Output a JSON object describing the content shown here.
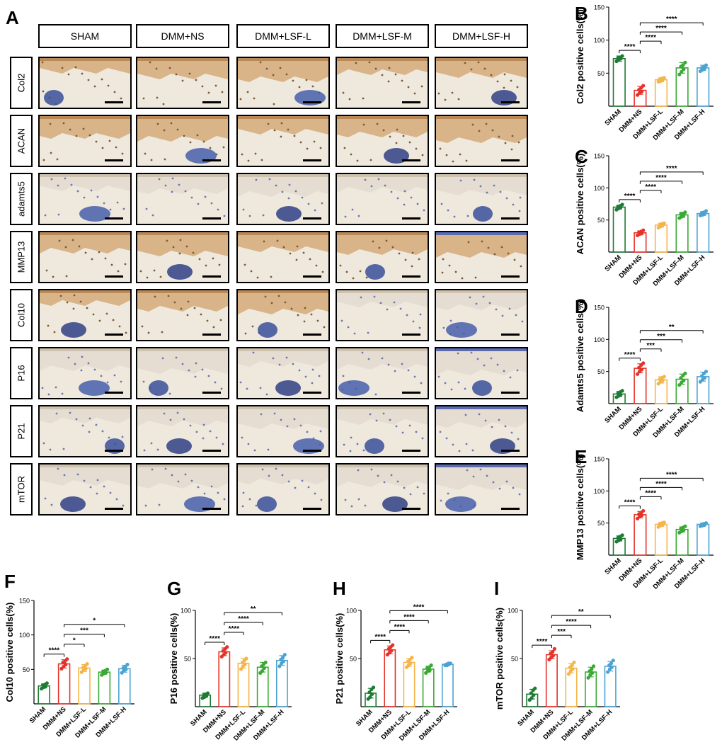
{
  "panel_letters": [
    "A",
    "B",
    "C",
    "D",
    "E",
    "F",
    "G",
    "H",
    "I"
  ],
  "histology": {
    "columns": [
      "SHAM",
      "DMM+NS",
      "DMM+LSF-L",
      "DMM+LSF-M",
      "DMM+LSF-H"
    ],
    "rows": [
      "Col2",
      "ACAN",
      "adamts5",
      "MMP13",
      "Col10",
      "P16",
      "P21",
      "mTOR"
    ]
  },
  "chart_data": [
    {
      "panel": "B",
      "type": "bar",
      "title": "",
      "ylabel": "Col2 positive cells(%)",
      "categories": [
        "SHAM",
        "DMM+NS",
        "DMM+LSF-L",
        "DMM+LSF-M",
        "DMM+LSF-H"
      ],
      "values": [
        72,
        24,
        40,
        58,
        58
      ],
      "errors": [
        4,
        6,
        3,
        8,
        4
      ],
      "points": [
        [
          68,
          70,
          72,
          73,
          74,
          76
        ],
        [
          17,
          20,
          22,
          25,
          28,
          31
        ],
        [
          37,
          38,
          40,
          41,
          42,
          43
        ],
        [
          48,
          52,
          56,
          60,
          62,
          66
        ],
        [
          53,
          55,
          57,
          58,
          60,
          62
        ]
      ],
      "ylim": [
        0,
        150
      ],
      "yticks": [
        50,
        100,
        150
      ],
      "colors": [
        "#1e7b34",
        "#e5332a",
        "#f5b54a",
        "#3aa935",
        "#4ba3d3"
      ],
      "comparisons": [
        {
          "a": 0,
          "b": 1,
          "label": "****"
        },
        {
          "a": 1,
          "b": 2,
          "label": "****"
        },
        {
          "a": 1,
          "b": 3,
          "label": "****"
        },
        {
          "a": 1,
          "b": 4,
          "label": "****"
        }
      ]
    },
    {
      "panel": "C",
      "type": "bar",
      "title": "",
      "ylabel": "ACAN positive cells(%)",
      "categories": [
        "SHAM",
        "DMM+NS",
        "DMM+LSF-L",
        "DMM+LSF-M",
        "DMM+LSF-H"
      ],
      "values": [
        70,
        30,
        42,
        58,
        60
      ],
      "errors": [
        3,
        3,
        3,
        4,
        3
      ],
      "points": [
        [
          66,
          68,
          70,
          71,
          72,
          74
        ],
        [
          26,
          28,
          29,
          31,
          32,
          34
        ],
        [
          38,
          40,
          42,
          43,
          44,
          45
        ],
        [
          53,
          55,
          57,
          59,
          60,
          62
        ],
        [
          57,
          58,
          60,
          61,
          62,
          64
        ]
      ],
      "ylim": [
        0,
        150
      ],
      "yticks": [
        50,
        100,
        150
      ],
      "colors": [
        "#1e7b34",
        "#e5332a",
        "#f5b54a",
        "#3aa935",
        "#4ba3d3"
      ],
      "comparisons": [
        {
          "a": 0,
          "b": 1,
          "label": "****"
        },
        {
          "a": 1,
          "b": 2,
          "label": "****"
        },
        {
          "a": 1,
          "b": 3,
          "label": "****"
        },
        {
          "a": 1,
          "b": 4,
          "label": "****"
        }
      ]
    },
    {
      "panel": "D",
      "type": "bar",
      "title": "",
      "ylabel": "Adamts5 positive cells(%)",
      "categories": [
        "SHAM",
        "DMM+NS",
        "DMM+LSF-L",
        "DMM+LSF-M",
        "DMM+LSF-H"
      ],
      "values": [
        15,
        55,
        37,
        38,
        42
      ],
      "errors": [
        4,
        7,
        5,
        8,
        7
      ],
      "points": [
        [
          10,
          12,
          14,
          16,
          18,
          20
        ],
        [
          46,
          50,
          53,
          56,
          60,
          63
        ],
        [
          31,
          34,
          36,
          38,
          40,
          42
        ],
        [
          29,
          33,
          36,
          40,
          44,
          47
        ],
        [
          34,
          37,
          40,
          43,
          47,
          50
        ]
      ],
      "ylim": [
        0,
        150
      ],
      "yticks": [
        50,
        100,
        150
      ],
      "colors": [
        "#1e7b34",
        "#e5332a",
        "#f5b54a",
        "#3aa935",
        "#4ba3d3"
      ],
      "comparisons": [
        {
          "a": 0,
          "b": 1,
          "label": "****"
        },
        {
          "a": 1,
          "b": 2,
          "label": "***"
        },
        {
          "a": 1,
          "b": 3,
          "label": "***"
        },
        {
          "a": 1,
          "b": 4,
          "label": "**"
        }
      ]
    },
    {
      "panel": "E",
      "type": "bar",
      "title": "",
      "ylabel": "MMP13 positive cells(%)",
      "categories": [
        "SHAM",
        "DMM+NS",
        "DMM+LSF-L",
        "DMM+LSF-M",
        "DMM+LSF-H"
      ],
      "values": [
        26,
        63,
        48,
        40,
        48
      ],
      "errors": [
        4,
        5,
        3,
        4,
        2
      ],
      "points": [
        [
          21,
          23,
          25,
          27,
          29,
          31
        ],
        [
          57,
          60,
          62,
          64,
          66,
          69
        ],
        [
          44,
          46,
          47,
          49,
          50,
          51
        ],
        [
          35,
          37,
          39,
          41,
          43,
          45
        ],
        [
          45,
          46,
          47,
          48,
          49,
          50
        ]
      ],
      "ylim": [
        0,
        150
      ],
      "yticks": [
        50,
        100,
        150
      ],
      "colors": [
        "#1e7b34",
        "#e5332a",
        "#f5b54a",
        "#3aa935",
        "#4ba3d3"
      ],
      "comparisons": [
        {
          "a": 0,
          "b": 1,
          "label": "****"
        },
        {
          "a": 1,
          "b": 2,
          "label": "****"
        },
        {
          "a": 1,
          "b": 3,
          "label": "****"
        },
        {
          "a": 1,
          "b": 4,
          "label": "****"
        }
      ]
    },
    {
      "panel": "F",
      "type": "bar",
      "title": "",
      "ylabel": "Col10 positive cells(%)",
      "categories": [
        "SHAM",
        "DMM+NS",
        "DMM+LSF-L",
        "DMM+LSF-M",
        "DMM+LSF-H"
      ],
      "values": [
        26,
        58,
        52,
        46,
        51
      ],
      "errors": [
        3,
        6,
        5,
        3,
        5
      ],
      "points": [
        [
          22,
          24,
          25,
          27,
          28,
          30
        ],
        [
          51,
          54,
          57,
          60,
          62,
          65
        ],
        [
          46,
          49,
          51,
          53,
          55,
          58
        ],
        [
          42,
          44,
          45,
          47,
          48,
          50
        ],
        [
          45,
          48,
          50,
          52,
          54,
          57
        ]
      ],
      "ylim": [
        0,
        150
      ],
      "yticks": [
        50,
        100,
        150
      ],
      "colors": [
        "#1e7b34",
        "#e5332a",
        "#f5b54a",
        "#3aa935",
        "#4ba3d3"
      ],
      "comparisons": [
        {
          "a": 0,
          "b": 1,
          "label": "****"
        },
        {
          "a": 1,
          "b": 2,
          "label": "*"
        },
        {
          "a": 1,
          "b": 3,
          "label": "***"
        },
        {
          "a": 1,
          "b": 4,
          "label": "*"
        }
      ]
    },
    {
      "panel": "G",
      "type": "bar",
      "title": "",
      "ylabel": "P16 positive cells(%)",
      "categories": [
        "SHAM",
        "DMM+NS",
        "DMM+LSF-L",
        "DMM+LSF-M",
        "DMM+LSF-H"
      ],
      "values": [
        12,
        57,
        45,
        41,
        48
      ],
      "errors": [
        2,
        4,
        5,
        5,
        5
      ],
      "points": [
        [
          9,
          10,
          11,
          12,
          13,
          14
        ],
        [
          52,
          54,
          56,
          58,
          60,
          62
        ],
        [
          39,
          42,
          44,
          46,
          48,
          50
        ],
        [
          35,
          37,
          40,
          42,
          44,
          46
        ],
        [
          42,
          45,
          47,
          49,
          51,
          54
        ]
      ],
      "ylim": [
        0,
        100
      ],
      "yticks": [
        50,
        100
      ],
      "colors": [
        "#1e7b34",
        "#e5332a",
        "#f5b54a",
        "#3aa935",
        "#4ba3d3"
      ],
      "comparisons": [
        {
          "a": 0,
          "b": 1,
          "label": "****"
        },
        {
          "a": 1,
          "b": 2,
          "label": "****"
        },
        {
          "a": 1,
          "b": 3,
          "label": "****"
        },
        {
          "a": 1,
          "b": 4,
          "label": "**"
        }
      ]
    },
    {
      "panel": "H",
      "type": "bar",
      "title": "",
      "ylabel": "P21 positive cells(%)",
      "categories": [
        "SHAM",
        "DMM+NS",
        "DMM+LSF-L",
        "DMM+LSF-M",
        "DMM+LSF-H"
      ],
      "values": [
        14,
        59,
        46,
        39,
        44
      ],
      "errors": [
        5,
        4,
        4,
        3,
        1
      ],
      "points": [
        [
          8,
          10,
          13,
          15,
          18,
          20
        ],
        [
          54,
          56,
          58,
          60,
          62,
          64
        ],
        [
          41,
          43,
          45,
          47,
          49,
          51
        ],
        [
          35,
          37,
          38,
          40,
          41,
          43
        ],
        [
          43,
          43,
          44,
          44,
          45,
          45
        ]
      ],
      "ylim": [
        0,
        100
      ],
      "yticks": [
        50,
        100
      ],
      "colors": [
        "#1e7b34",
        "#e5332a",
        "#f5b54a",
        "#3aa935",
        "#4ba3d3"
      ],
      "comparisons": [
        {
          "a": 0,
          "b": 1,
          "label": "****"
        },
        {
          "a": 1,
          "b": 2,
          "label": "****"
        },
        {
          "a": 1,
          "b": 3,
          "label": "****"
        },
        {
          "a": 1,
          "b": 4,
          "label": "****"
        }
      ]
    },
    {
      "panel": "I",
      "type": "bar",
      "title": "",
      "ylabel": "mTOR positive cells(%)",
      "categories": [
        "SHAM",
        "DMM+NS",
        "DMM+LSF-L",
        "DMM+LSF-M",
        "DMM+LSF-H"
      ],
      "values": [
        13,
        54,
        40,
        36,
        42
      ],
      "errors": [
        5,
        4,
        5,
        5,
        5
      ],
      "points": [
        [
          7,
          9,
          12,
          14,
          17,
          19
        ],
        [
          49,
          51,
          53,
          55,
          57,
          60
        ],
        [
          34,
          37,
          39,
          41,
          43,
          46
        ],
        [
          30,
          33,
          35,
          37,
          39,
          42
        ],
        [
          36,
          39,
          41,
          43,
          45,
          48
        ]
      ],
      "ylim": [
        0,
        100
      ],
      "yticks": [
        50,
        100
      ],
      "colors": [
        "#1e7b34",
        "#e5332a",
        "#f5b54a",
        "#3aa935",
        "#4ba3d3"
      ],
      "comparisons": [
        {
          "a": 0,
          "b": 1,
          "label": "****"
        },
        {
          "a": 1,
          "b": 2,
          "label": "***"
        },
        {
          "a": 1,
          "b": 3,
          "label": "****"
        },
        {
          "a": 1,
          "b": 4,
          "label": "**"
        }
      ]
    }
  ]
}
